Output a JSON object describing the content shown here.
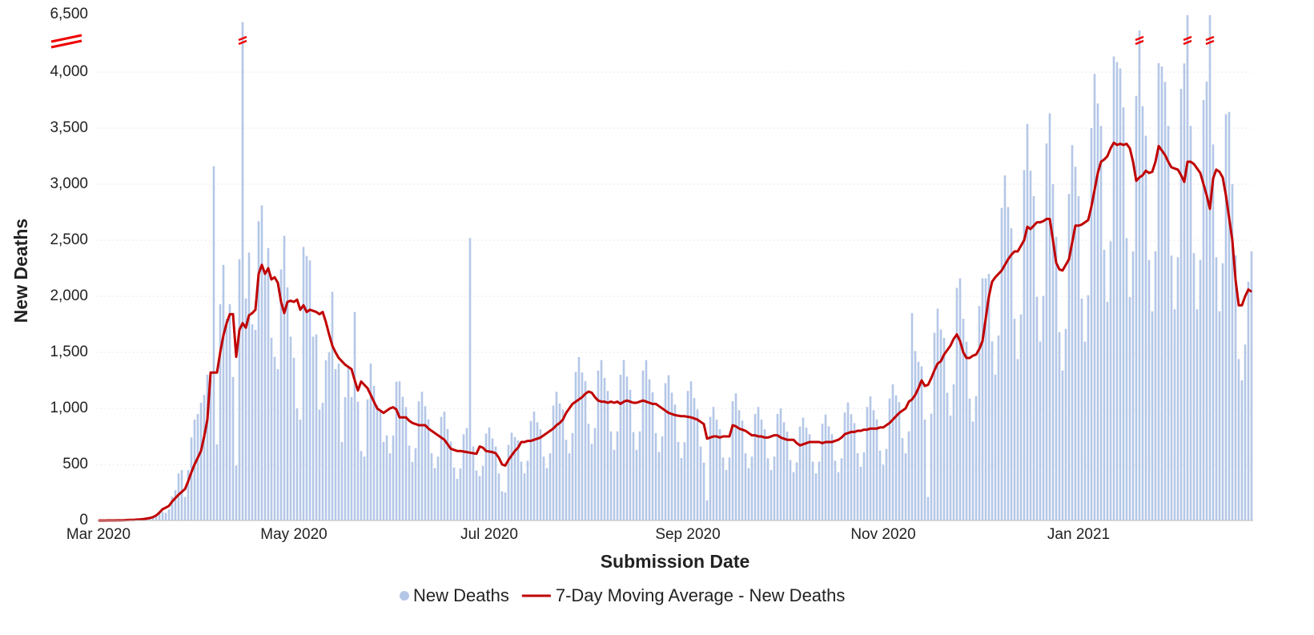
{
  "chart_data": {
    "type": "bar-line",
    "x_label": "Submission Date",
    "y_label": "New Deaths",
    "xlim": [
      -0.5,
      360.5
    ],
    "xticks": [
      {
        "value": 0,
        "label": "Mar 2020"
      },
      {
        "value": 61,
        "label": "May 2020"
      },
      {
        "value": 122,
        "label": "Jul 2020"
      },
      {
        "value": 184,
        "label": "Sep 2020"
      },
      {
        "value": 245,
        "label": "Nov 2020"
      },
      {
        "value": 306,
        "label": "Jan 2021"
      }
    ],
    "ylim": [
      0,
      6500
    ],
    "y_break": 4200,
    "yticks": [
      0,
      500,
      {
        "value": 1000,
        "label": "1,000"
      },
      {
        "value": 1500,
        "label": "1,500"
      },
      {
        "value": 2000,
        "label": "2,000"
      },
      {
        "value": 2500,
        "label": "2,500"
      },
      {
        "value": 3000,
        "label": "3,000"
      },
      {
        "value": 3500,
        "label": "3,500"
      },
      {
        "value": 4000,
        "label": "4,000"
      },
      {
        "value": 6500,
        "label": "6,500"
      }
    ],
    "grid": true,
    "series": [
      {
        "name": "New Deaths",
        "kind": "bar",
        "color": "#b4c7e7",
        "values": [
          0,
          0,
          0,
          1,
          1,
          1,
          2,
          1,
          2,
          5,
          7,
          7,
          9,
          8,
          8,
          13,
          28,
          41,
          54,
          77,
          75,
          69,
          98,
          213,
          270,
          420,
          450,
          210,
          450,
          740,
          900,
          950,
          1050,
          1120,
          1300,
          1300,
          3160,
          680,
          1930,
          2280,
          1800,
          1930,
          1280,
          490,
          2330,
          6000,
          1980,
          2390,
          1750,
          1700,
          2670,
          2810,
          2230,
          2430,
          1630,
          1460,
          1350,
          2240,
          2540,
          2080,
          1640,
          1450,
          1000,
          900,
          2440,
          2360,
          2320,
          1640,
          1660,
          990,
          1050,
          1430,
          1500,
          2040,
          1350,
          1400,
          700,
          1100,
          1380,
          1100,
          1860,
          1060,
          620,
          570,
          1080,
          1400,
          1200,
          1030,
          980,
          700,
          760,
          600,
          758,
          1238,
          1242,
          1104,
          1012,
          668,
          522,
          645,
          1063,
          1148,
          1020,
          902,
          600,
          468,
          570,
          925,
          972,
          816,
          704,
          473,
          372,
          465,
          769,
          824,
          2520,
          660,
          446,
          396,
          488,
          775,
          830,
          732,
          660,
          420,
          260,
          250,
          675,
          783,
          744,
          715,
          525,
          420,
          533,
          888,
          972,
          876,
          814,
          570,
          468,
          600,
          1025,
          1148,
          1044,
          990,
          720,
          600,
          780,
          1325,
          1458,
          1320,
          1243,
          863,
          684,
          825,
          1338,
          1431,
          1272,
          1155,
          795,
          630,
          795,
          1300,
          1431,
          1284,
          1166,
          788,
          630,
          795,
          1338,
          1431,
          1260,
          1144,
          780,
          612,
          750,
          1225,
          1296,
          1140,
          1034,
          701,
          558,
          698,
          1156,
          1242,
          1092,
          990,
          660,
          516,
          180,
          925,
          1013,
          900,
          814,
          563,
          450,
          563,
          1063,
          1134,
          984,
          891,
          600,
          468,
          570,
          950,
          1013,
          900,
          814,
          555,
          450,
          570,
          950,
          999,
          876,
          792,
          540,
          432,
          518,
          838,
          918,
          828,
          770,
          525,
          420,
          525,
          863,
          945,
          840,
          770,
          533,
          432,
          555,
          963,
          1053,
          948,
          869,
          600,
          480,
          608,
          1013,
          1107,
          984,
          902,
          623,
          498,
          638,
          1088,
          1215,
          1116,
          1056,
          735,
          600,
          795,
          1850,
          1512,
          1416,
          1375,
          900,
          210,
          953,
          1675,
          1890,
          1704,
          1628,
          1140,
          936,
          1215,
          2075,
          2160,
          1800,
          1595,
          1088,
          882,
          1110,
          1913,
          2160,
          2160,
          2200,
          1598,
          1302,
          1650,
          2788,
          3078,
          2796,
          2607,
          1800,
          1440,
          1838,
          3125,
          3537,
          3120,
          2893,
          1995,
          1596,
          2003,
          3363,
          3632,
          3000,
          2530,
          1680,
          1338,
          1710,
          2913,
          3348,
          3156,
          2893,
          1980,
          1596,
          2010,
          3500,
          3983,
          3720,
          3520,
          2415,
          1950,
          2490,
          4140,
          4090,
          4032,
          3685,
          2520,
          1992,
          2400,
          3788,
          5450,
          3696,
          3432,
          2325,
          1866,
          2400,
          4080,
          4050,
          3912,
          3520,
          2363,
          1884,
          2348,
          3850,
          4077,
          6450,
          3520,
          2385,
          1884,
          2325,
          3750,
          3915,
          6450,
          3355,
          2348,
          1866,
          2295,
          3625,
          3645,
          3000,
          2365,
          1440,
          1250,
          1570,
          2130,
          2400
        ]
      },
      {
        "name": "7-Day Moving Average - New Deaths",
        "kind": "line",
        "color": "#c00000",
        "values": [
          0,
          0,
          0,
          1,
          1,
          1,
          2,
          2,
          3,
          4,
          5,
          6,
          8,
          10,
          13,
          17,
          22,
          30,
          45,
          70,
          100,
          115,
          130,
          170,
          200,
          230,
          255,
          280,
          350,
          430,
          500,
          560,
          620,
          750,
          900,
          1320,
          1320,
          1320,
          1500,
          1650,
          1760,
          1840,
          1840,
          1460,
          1700,
          1760,
          1720,
          1830,
          1850,
          1880,
          2200,
          2280,
          2200,
          2250,
          2150,
          2170,
          2120,
          1950,
          1850,
          1950,
          1960,
          1950,
          1970,
          1880,
          1920,
          1860,
          1880,
          1870,
          1860,
          1840,
          1860,
          1770,
          1660,
          1560,
          1500,
          1450,
          1420,
          1390,
          1370,
          1350,
          1250,
          1160,
          1240,
          1210,
          1180,
          1120,
          1060,
          1000,
          980,
          960,
          980,
          1000,
          1010,
          990,
          920,
          920,
          920,
          890,
          870,
          860,
          850,
          850,
          850,
          820,
          800,
          780,
          760,
          740,
          720,
          680,
          640,
          630,
          620,
          620,
          615,
          610,
          605,
          600,
          595,
          660,
          650,
          620,
          615,
          610,
          600,
          560,
          500,
          490,
          540,
          580,
          620,
          650,
          700,
          700,
          710,
          710,
          720,
          730,
          740,
          760,
          780,
          800,
          820,
          850,
          870,
          900,
          960,
          1000,
          1040,
          1060,
          1080,
          1100,
          1130,
          1150,
          1140,
          1100,
          1070,
          1060,
          1060,
          1050,
          1060,
          1050,
          1060,
          1040,
          1060,
          1070,
          1060,
          1050,
          1050,
          1060,
          1070,
          1060,
          1050,
          1040,
          1040,
          1020,
          1000,
          980,
          960,
          950,
          940,
          935,
          930,
          930,
          925,
          920,
          910,
          900,
          880,
          860,
          730,
          740,
          750,
          750,
          740,
          750,
          750,
          750,
          850,
          840,
          820,
          810,
          800,
          780,
          760,
          760,
          750,
          750,
          740,
          740,
          750,
          760,
          760,
          740,
          730,
          720,
          720,
          720,
          690,
          670,
          680,
          690,
          700,
          700,
          700,
          700,
          690,
          700,
          700,
          700,
          710,
          720,
          740,
          770,
          780,
          790,
          790,
          800,
          800,
          810,
          810,
          820,
          820,
          820,
          830,
          830,
          850,
          870,
          900,
          930,
          960,
          980,
          1000,
          1060,
          1080,
          1120,
          1180,
          1250,
          1200,
          1210,
          1270,
          1340,
          1400,
          1420,
          1480,
          1520,
          1560,
          1620,
          1660,
          1600,
          1500,
          1450,
          1450,
          1470,
          1480,
          1530,
          1600,
          1800,
          2000,
          2130,
          2170,
          2200,
          2230,
          2280,
          2330,
          2370,
          2400,
          2400,
          2450,
          2500,
          2620,
          2600,
          2630,
          2660,
          2660,
          2670,
          2690,
          2690,
          2500,
          2300,
          2240,
          2230,
          2280,
          2330,
          2480,
          2630,
          2630,
          2640,
          2660,
          2680,
          2800,
          2950,
          3100,
          3200,
          3220,
          3250,
          3320,
          3370,
          3350,
          3360,
          3350,
          3360,
          3320,
          3200,
          3030,
          3060,
          3080,
          3120,
          3100,
          3110,
          3200,
          3340,
          3300,
          3260,
          3200,
          3150,
          3140,
          3130,
          3080,
          3020,
          3200,
          3200,
          3180,
          3140,
          3100,
          3000,
          2900,
          2780,
          3050,
          3130,
          3110,
          3060,
          2900,
          2700,
          2500,
          2150,
          1920,
          1920,
          2000,
          2060,
          2040
        ]
      }
    ]
  }
}
